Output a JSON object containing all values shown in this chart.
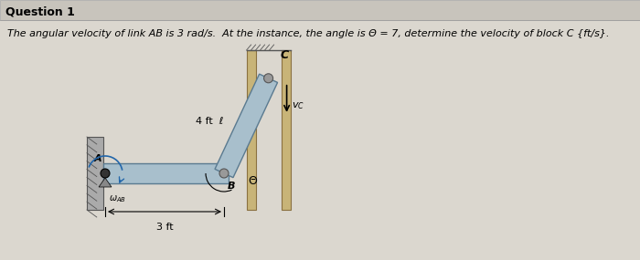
{
  "title": "Question 1",
  "problem_text": "The angular velocity of link AB is 3 rad/s.  At the instance, the angle is Θ = 7, determine the velocity of block C {ft/s}.",
  "bg_color": "#dbd7cf",
  "title_bg": "#c8c4bc",
  "wall_color": "#888888",
  "link_color": "#a8bfcc",
  "link_edge_color": "#5a7a90",
  "slot_color": "#c8b478",
  "slot_edge_color": "#8a7040",
  "link_AB_length_label": "3 ft",
  "link_BC_length_label": "4 ft  ℓ",
  "omega_label": "ωAB",
  "theta_label": "Θ",
  "vc_label": "v_C",
  "C_label": "C",
  "A_label": "A",
  "B_label": "B"
}
